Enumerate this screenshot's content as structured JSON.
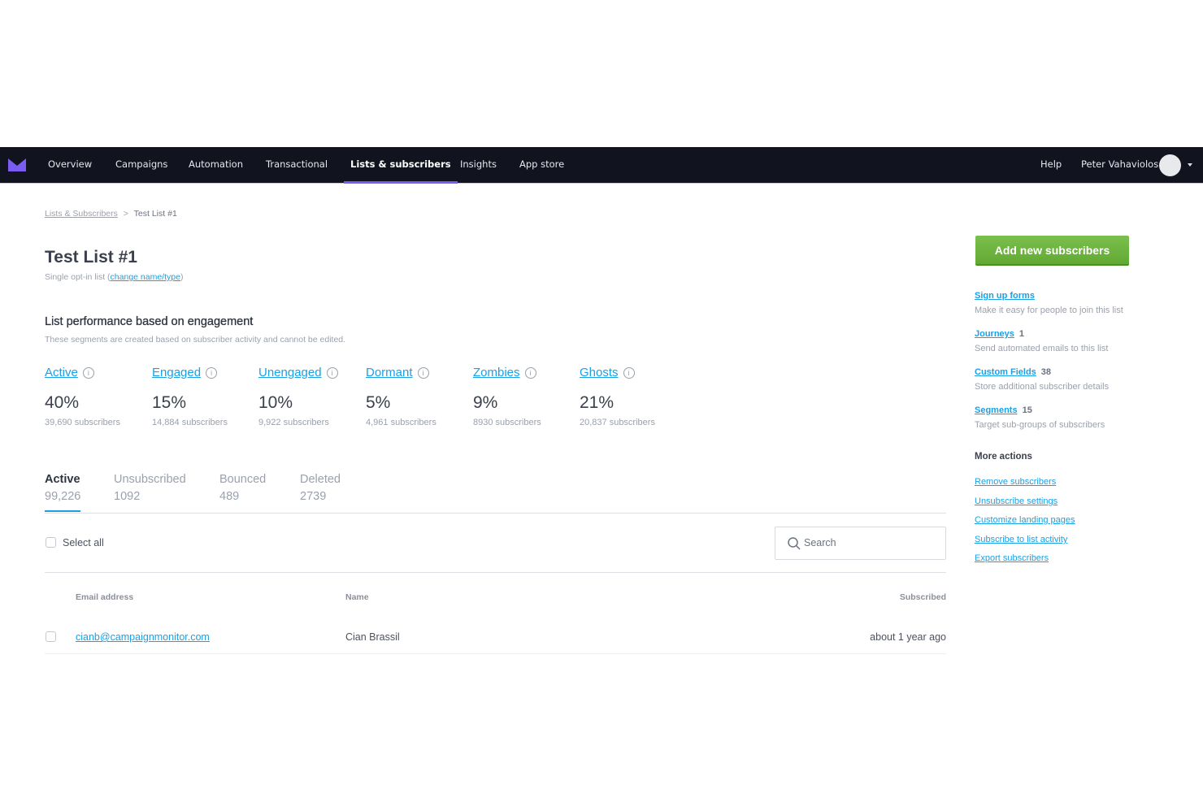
{
  "nav": {
    "items": [
      "Overview",
      "Campaigns",
      "Automation",
      "Transactional",
      "Lists & subscribers",
      "Insights",
      "App store"
    ],
    "active_index": 4,
    "help": "Help",
    "user_name": "Peter Vahaviolos"
  },
  "breadcrumb": {
    "parent": "Lists & Subscribers",
    "separator": ">",
    "current": "Test List #1"
  },
  "page": {
    "title": "Test List #1",
    "subtitle_prefix": "Single opt-in list (",
    "subtitle_link": "change name/type",
    "subtitle_suffix": ")"
  },
  "performance": {
    "title": "List performance based on engagement",
    "description": "These segments are created based on subscriber activity and cannot be edited.",
    "segments": [
      {
        "label": "Active",
        "percent": "40%",
        "count": "39,690 subscribers"
      },
      {
        "label": "Engaged",
        "percent": "15%",
        "count": "14,884 subscribers"
      },
      {
        "label": "Unengaged",
        "percent": "10%",
        "count": "9,922 subscribers"
      },
      {
        "label": "Dormant",
        "percent": "5%",
        "count": "4,961 subscribers"
      },
      {
        "label": "Zombies",
        "percent": "9%",
        "count": "8930 subscribers"
      },
      {
        "label": "Ghosts",
        "percent": "21%",
        "count": "20,837 subscribers"
      }
    ]
  },
  "status_tabs": [
    {
      "label": "Active",
      "count": "99,226"
    },
    {
      "label": "Unsubscribed",
      "count": "1092"
    },
    {
      "label": "Bounced",
      "count": "489"
    },
    {
      "label": "Deleted",
      "count": "2739"
    }
  ],
  "table": {
    "select_all": "Select all",
    "search_placeholder": "Search",
    "columns": {
      "email": "Email address",
      "name": "Name",
      "subscribed": "Subscribed"
    },
    "rows": [
      {
        "email": "cianb@campaignmonitor.com",
        "name": "Cian Brassil",
        "subscribed": "about 1 year ago"
      }
    ]
  },
  "sidebar": {
    "add_button": "Add new subscribers",
    "features": [
      {
        "title": "Sign up forms",
        "count": "",
        "desc": "Make it easy for people to join this list"
      },
      {
        "title": "Journeys",
        "count": "1",
        "desc": "Send automated emails to this list"
      },
      {
        "title": "Custom Fields",
        "count": "38",
        "desc": "Store additional subscriber details"
      },
      {
        "title": "Segments",
        "count": "15",
        "desc": "Target sub-groups of subscribers"
      }
    ],
    "more_title": "More actions",
    "actions": [
      "Remove subscribers",
      "Unsubscribe settings",
      "Customize landing pages",
      "Subscribe to list activity",
      "Export subscribers"
    ]
  },
  "colors": {
    "nav_bg": "#11131f",
    "accent": "#7b5cf0",
    "link": "#1aa0e6",
    "button": "#6cb33f"
  }
}
